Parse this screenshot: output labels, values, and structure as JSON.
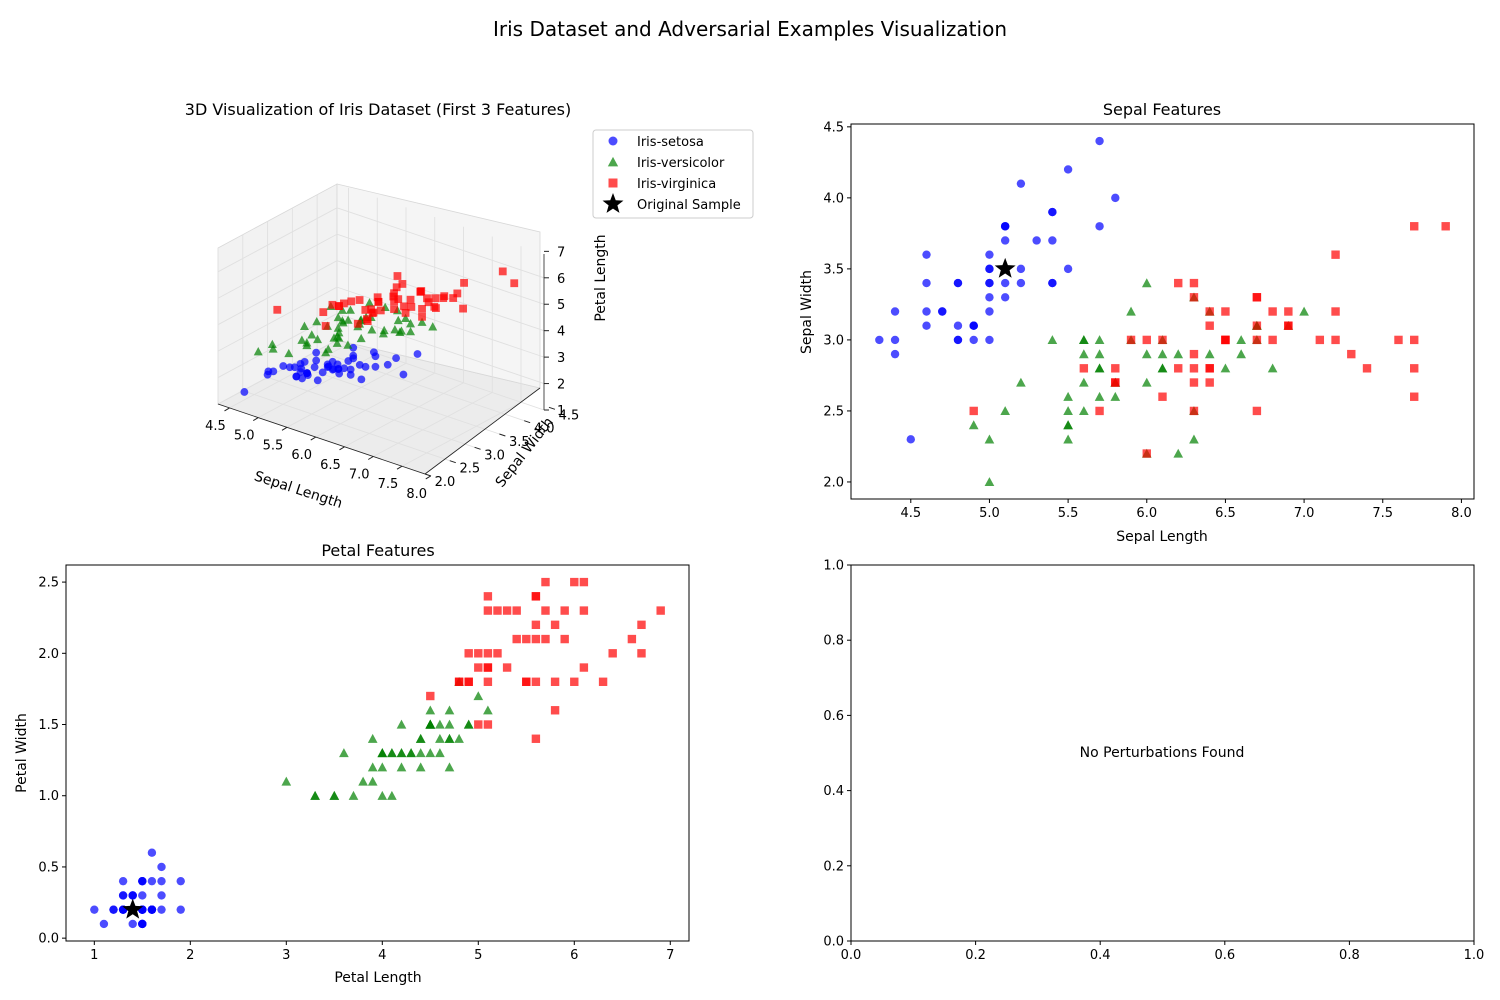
{
  "title": "Iris Dataset and Adversarial Examples Visualization",
  "colors": {
    "setosa": "#0000ff",
    "versicolor": "#008000",
    "virginica": "#ff0000",
    "original": "#000000"
  },
  "legend": {
    "placement": "outside-right of 3D panel",
    "entries": [
      {
        "label": "Iris-setosa",
        "marker": "circle",
        "color": "#0000ff"
      },
      {
        "label": "Iris-versicolor",
        "marker": "triangle",
        "color": "#008000"
      },
      {
        "label": "Iris-virginica",
        "marker": "square",
        "color": "#ff0000"
      },
      {
        "label": "Original Sample",
        "marker": "star",
        "color": "#000000"
      }
    ]
  },
  "chart_data": [
    {
      "type": "scatter",
      "title": "3D Visualization of Iris Dataset (First 3 Features)",
      "xlabel": "Sepal Length",
      "ylabel": "Sepal Width",
      "zlabel": "Petal Length",
      "x_ticks": [
        "4.5",
        "5.0",
        "5.5",
        "6.0",
        "6.5",
        "7.0",
        "7.5",
        "8.0"
      ],
      "y_ticks": [
        "2.0",
        "2.5",
        "3.0",
        "3.5",
        "4.0",
        "4.5"
      ],
      "z_ticks": [
        "1",
        "2",
        "3",
        "4",
        "5",
        "6",
        "7"
      ],
      "xlim": [
        4.3,
        7.9
      ],
      "ylim": [
        2.0,
        4.4
      ],
      "zlim": [
        1.0,
        6.9
      ],
      "projection": "3d"
    },
    {
      "type": "scatter",
      "title": "Sepal Features",
      "xlabel": "Sepal Length",
      "ylabel": "Sepal Width",
      "xlim": [
        4.12,
        8.08
      ],
      "ylim": [
        1.88,
        4.52
      ],
      "x_ticks": [
        "4.5",
        "5.0",
        "5.5",
        "6.0",
        "6.5",
        "7.0",
        "7.5",
        "8.0"
      ],
      "y_ticks": [
        "2.0",
        "2.5",
        "3.0",
        "3.5",
        "4.0",
        "4.5"
      ],
      "x_tick_values": [
        4.5,
        5.0,
        5.5,
        6.0,
        6.5,
        7.0,
        7.5,
        8.0
      ],
      "y_tick_values": [
        2.0,
        2.5,
        3.0,
        3.5,
        4.0,
        4.5
      ],
      "grid": false,
      "original_sample": [
        5.1,
        3.5
      ]
    },
    {
      "type": "scatter",
      "title": "Petal Features",
      "xlabel": "Petal Length",
      "ylabel": "Petal Width",
      "xlim": [
        0.705,
        7.195
      ],
      "ylim": [
        -0.02,
        2.62
      ],
      "x_ticks": [
        "1",
        "2",
        "3",
        "4",
        "5",
        "6",
        "7"
      ],
      "y_ticks": [
        "0.0",
        "0.5",
        "1.0",
        "1.5",
        "2.0",
        "2.5"
      ],
      "x_tick_values": [
        1,
        2,
        3,
        4,
        5,
        6,
        7
      ],
      "y_tick_values": [
        0.0,
        0.5,
        1.0,
        1.5,
        2.0,
        2.5
      ],
      "grid": false,
      "original_sample": [
        1.4,
        0.2
      ]
    },
    {
      "type": "scatter",
      "annotation": "No Perturbations Found",
      "xlim": [
        0,
        1
      ],
      "ylim": [
        0,
        1
      ],
      "x_ticks": [
        "0.0",
        "0.2",
        "0.4",
        "0.6",
        "0.8",
        "1.0"
      ],
      "y_ticks": [
        "0.0",
        "0.2",
        "0.4",
        "0.6",
        "0.8",
        "1.0"
      ],
      "x_tick_values": [
        0.0,
        0.2,
        0.4,
        0.6,
        0.8,
        1.0
      ],
      "y_tick_values": [
        0.0,
        0.2,
        0.4,
        0.6,
        0.8,
        1.0
      ]
    }
  ],
  "iris": {
    "columns": [
      "sepal_length",
      "sepal_width",
      "petal_length",
      "petal_width"
    ],
    "setosa": [
      [
        5.1,
        3.5,
        1.4,
        0.2
      ],
      [
        4.9,
        3.0,
        1.4,
        0.2
      ],
      [
        4.7,
        3.2,
        1.3,
        0.2
      ],
      [
        4.6,
        3.1,
        1.5,
        0.2
      ],
      [
        5.0,
        3.6,
        1.4,
        0.2
      ],
      [
        5.4,
        3.9,
        1.7,
        0.4
      ],
      [
        4.6,
        3.4,
        1.4,
        0.3
      ],
      [
        5.0,
        3.4,
        1.5,
        0.2
      ],
      [
        4.4,
        2.9,
        1.4,
        0.2
      ],
      [
        4.9,
        3.1,
        1.5,
        0.1
      ],
      [
        5.4,
        3.7,
        1.5,
        0.2
      ],
      [
        4.8,
        3.4,
        1.6,
        0.2
      ],
      [
        4.8,
        3.0,
        1.4,
        0.1
      ],
      [
        4.3,
        3.0,
        1.1,
        0.1
      ],
      [
        5.8,
        4.0,
        1.2,
        0.2
      ],
      [
        5.7,
        4.4,
        1.5,
        0.4
      ],
      [
        5.4,
        3.9,
        1.3,
        0.4
      ],
      [
        5.1,
        3.5,
        1.4,
        0.3
      ],
      [
        5.7,
        3.8,
        1.7,
        0.3
      ],
      [
        5.1,
        3.8,
        1.5,
        0.3
      ],
      [
        5.4,
        3.4,
        1.7,
        0.2
      ],
      [
        5.1,
        3.7,
        1.5,
        0.4
      ],
      [
        4.6,
        3.6,
        1.0,
        0.2
      ],
      [
        5.1,
        3.3,
        1.7,
        0.5
      ],
      [
        4.8,
        3.4,
        1.9,
        0.2
      ],
      [
        5.0,
        3.0,
        1.6,
        0.2
      ],
      [
        5.0,
        3.4,
        1.6,
        0.4
      ],
      [
        5.2,
        3.5,
        1.5,
        0.2
      ],
      [
        5.2,
        3.4,
        1.4,
        0.2
      ],
      [
        4.7,
        3.2,
        1.6,
        0.2
      ],
      [
        4.8,
        3.1,
        1.6,
        0.2
      ],
      [
        5.4,
        3.4,
        1.5,
        0.4
      ],
      [
        5.2,
        4.1,
        1.5,
        0.1
      ],
      [
        5.5,
        4.2,
        1.4,
        0.2
      ],
      [
        4.9,
        3.1,
        1.5,
        0.1
      ],
      [
        5.0,
        3.2,
        1.2,
        0.2
      ],
      [
        5.5,
        3.5,
        1.3,
        0.2
      ],
      [
        4.9,
        3.1,
        1.5,
        0.1
      ],
      [
        4.4,
        3.0,
        1.3,
        0.2
      ],
      [
        5.1,
        3.4,
        1.5,
        0.2
      ],
      [
        5.0,
        3.5,
        1.3,
        0.3
      ],
      [
        4.5,
        2.3,
        1.3,
        0.3
      ],
      [
        4.4,
        3.2,
        1.3,
        0.2
      ],
      [
        5.0,
        3.5,
        1.6,
        0.6
      ],
      [
        5.1,
        3.8,
        1.9,
        0.4
      ],
      [
        4.8,
        3.0,
        1.4,
        0.3
      ],
      [
        5.1,
        3.8,
        1.6,
        0.2
      ],
      [
        4.6,
        3.2,
        1.4,
        0.2
      ],
      [
        5.3,
        3.7,
        1.5,
        0.2
      ],
      [
        5.0,
        3.3,
        1.4,
        0.2
      ]
    ],
    "versicolor": [
      [
        7.0,
        3.2,
        4.7,
        1.4
      ],
      [
        6.4,
        3.2,
        4.5,
        1.5
      ],
      [
        6.9,
        3.1,
        4.9,
        1.5
      ],
      [
        5.5,
        2.3,
        4.0,
        1.3
      ],
      [
        6.5,
        2.8,
        4.6,
        1.5
      ],
      [
        5.7,
        2.8,
        4.5,
        1.3
      ],
      [
        6.3,
        3.3,
        4.7,
        1.6
      ],
      [
        4.9,
        2.4,
        3.3,
        1.0
      ],
      [
        6.6,
        2.9,
        4.6,
        1.3
      ],
      [
        5.2,
        2.7,
        3.9,
        1.4
      ],
      [
        5.0,
        2.0,
        3.5,
        1.0
      ],
      [
        5.9,
        3.0,
        4.2,
        1.5
      ],
      [
        6.0,
        2.2,
        4.0,
        1.0
      ],
      [
        6.1,
        2.9,
        4.7,
        1.4
      ],
      [
        5.6,
        2.9,
        3.6,
        1.3
      ],
      [
        6.7,
        3.1,
        4.4,
        1.4
      ],
      [
        5.6,
        3.0,
        4.5,
        1.5
      ],
      [
        5.8,
        2.7,
        4.1,
        1.0
      ],
      [
        6.2,
        2.2,
        4.5,
        1.5
      ],
      [
        5.6,
        2.5,
        3.9,
        1.1
      ],
      [
        5.9,
        3.2,
        4.8,
        1.8
      ],
      [
        6.1,
        2.8,
        4.0,
        1.3
      ],
      [
        6.3,
        2.5,
        4.9,
        1.5
      ],
      [
        6.1,
        2.8,
        4.7,
        1.2
      ],
      [
        6.4,
        2.9,
        4.3,
        1.3
      ],
      [
        6.6,
        3.0,
        4.4,
        1.4
      ],
      [
        6.8,
        2.8,
        4.8,
        1.4
      ],
      [
        6.7,
        3.0,
        5.0,
        1.7
      ],
      [
        6.0,
        2.9,
        4.5,
        1.5
      ],
      [
        5.7,
        2.6,
        3.5,
        1.0
      ],
      [
        5.5,
        2.4,
        3.8,
        1.1
      ],
      [
        5.5,
        2.4,
        3.7,
        1.0
      ],
      [
        5.8,
        2.7,
        3.9,
        1.2
      ],
      [
        6.0,
        2.7,
        5.1,
        1.6
      ],
      [
        5.4,
        3.0,
        4.5,
        1.5
      ],
      [
        6.0,
        3.4,
        4.5,
        1.6
      ],
      [
        6.7,
        3.1,
        4.7,
        1.5
      ],
      [
        6.3,
        2.3,
        4.4,
        1.3
      ],
      [
        5.6,
        3.0,
        4.1,
        1.3
      ],
      [
        5.5,
        2.5,
        4.0,
        1.3
      ],
      [
        5.5,
        2.6,
        4.4,
        1.2
      ],
      [
        6.1,
        3.0,
        4.6,
        1.4
      ],
      [
        5.8,
        2.6,
        4.0,
        1.2
      ],
      [
        5.0,
        2.3,
        3.3,
        1.0
      ],
      [
        5.6,
        2.7,
        4.2,
        1.3
      ],
      [
        5.7,
        3.0,
        4.2,
        1.2
      ],
      [
        5.7,
        2.9,
        4.2,
        1.3
      ],
      [
        6.2,
        2.9,
        4.3,
        1.3
      ],
      [
        5.1,
        2.5,
        3.0,
        1.1
      ],
      [
        5.7,
        2.8,
        4.1,
        1.3
      ]
    ],
    "virginica": [
      [
        6.3,
        3.3,
        6.0,
        2.5
      ],
      [
        5.8,
        2.7,
        5.1,
        1.9
      ],
      [
        7.1,
        3.0,
        5.9,
        2.1
      ],
      [
        6.3,
        2.9,
        5.6,
        1.8
      ],
      [
        6.5,
        3.0,
        5.8,
        2.2
      ],
      [
        7.6,
        3.0,
        6.6,
        2.1
      ],
      [
        4.9,
        2.5,
        4.5,
        1.7
      ],
      [
        7.3,
        2.9,
        6.3,
        1.8
      ],
      [
        6.7,
        2.5,
        5.8,
        1.8
      ],
      [
        7.2,
        3.6,
        6.1,
        2.5
      ],
      [
        6.5,
        3.2,
        5.1,
        2.0
      ],
      [
        6.4,
        2.7,
        5.3,
        1.9
      ],
      [
        6.8,
        3.0,
        5.5,
        2.1
      ],
      [
        5.7,
        2.5,
        5.0,
        2.0
      ],
      [
        5.8,
        2.8,
        5.1,
        2.4
      ],
      [
        6.4,
        3.2,
        5.3,
        2.3
      ],
      [
        6.5,
        3.0,
        5.5,
        1.8
      ],
      [
        7.7,
        3.8,
        6.7,
        2.2
      ],
      [
        7.7,
        2.6,
        6.9,
        2.3
      ],
      [
        6.0,
        2.2,
        5.0,
        1.5
      ],
      [
        6.9,
        3.2,
        5.7,
        2.3
      ],
      [
        5.6,
        2.8,
        4.9,
        2.0
      ],
      [
        7.7,
        2.8,
        6.7,
        2.0
      ],
      [
        6.3,
        2.7,
        4.9,
        1.8
      ],
      [
        6.7,
        3.3,
        5.7,
        2.1
      ],
      [
        7.2,
        3.2,
        6.0,
        1.8
      ],
      [
        6.2,
        2.8,
        4.8,
        1.8
      ],
      [
        6.1,
        3.0,
        4.9,
        1.8
      ],
      [
        6.4,
        2.8,
        5.6,
        2.1
      ],
      [
        7.2,
        3.0,
        5.8,
        1.6
      ],
      [
        7.4,
        2.8,
        6.1,
        1.9
      ],
      [
        7.9,
        3.8,
        6.4,
        2.0
      ],
      [
        6.4,
        2.8,
        5.6,
        2.2
      ],
      [
        6.3,
        2.8,
        5.1,
        1.5
      ],
      [
        6.1,
        2.6,
        5.6,
        1.4
      ],
      [
        7.7,
        3.0,
        6.1,
        2.3
      ],
      [
        6.3,
        3.4,
        5.6,
        2.4
      ],
      [
        6.4,
        3.1,
        5.5,
        1.8
      ],
      [
        6.0,
        3.0,
        4.8,
        1.8
      ],
      [
        6.9,
        3.1,
        5.4,
        2.1
      ],
      [
        6.7,
        3.1,
        5.6,
        2.4
      ],
      [
        6.9,
        3.1,
        5.1,
        2.3
      ],
      [
        5.8,
        2.7,
        5.1,
        1.9
      ],
      [
        6.8,
        3.2,
        5.9,
        2.3
      ],
      [
        6.7,
        3.3,
        5.7,
        2.5
      ],
      [
        6.7,
        3.0,
        5.2,
        2.3
      ],
      [
        6.3,
        2.5,
        5.0,
        1.9
      ],
      [
        6.5,
        3.0,
        5.2,
        2.0
      ],
      [
        6.2,
        3.4,
        5.4,
        2.3
      ],
      [
        5.9,
        3.0,
        5.1,
        1.8
      ]
    ],
    "original_sample": [
      5.1,
      3.5,
      1.4,
      0.2
    ]
  }
}
